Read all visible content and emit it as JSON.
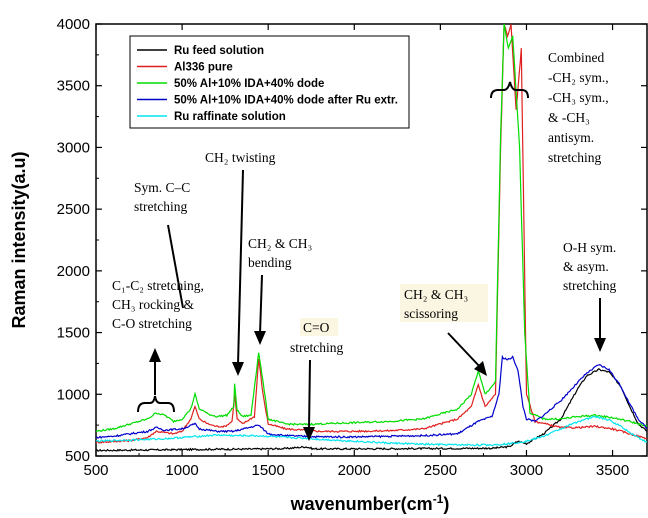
{
  "chart_data": {
    "type": "line",
    "title": "",
    "xlabel": "wavenumber(cm",
    "xlabel_sup": "-1",
    "xlabel_end": ")",
    "ylabel": "Raman intensity(a.u)",
    "xlim": [
      500,
      3700
    ],
    "ylim": [
      500,
      4000
    ],
    "xticks": [
      500,
      1000,
      1500,
      2000,
      2500,
      3000,
      3500
    ],
    "yticks": [
      500,
      1000,
      1500,
      2000,
      2500,
      3000,
      3500,
      4000
    ],
    "grid": false,
    "legend_position": "top-left",
    "series": [
      {
        "name": "Ru feed solution",
        "color": "#000000",
        "points": [
          [
            500,
            545
          ],
          [
            700,
            548
          ],
          [
            900,
            550
          ],
          [
            1000,
            552
          ],
          [
            1200,
            555
          ],
          [
            1400,
            556
          ],
          [
            1600,
            560
          ],
          [
            1720,
            575
          ],
          [
            1760,
            558
          ],
          [
            2000,
            558
          ],
          [
            2400,
            560
          ],
          [
            2800,
            563
          ],
          [
            2900,
            575
          ],
          [
            2950,
            620
          ],
          [
            3000,
            600
          ],
          [
            3100,
            680
          ],
          [
            3200,
            800
          ],
          [
            3300,
            1050
          ],
          [
            3350,
            1150
          ],
          [
            3420,
            1200
          ],
          [
            3480,
            1180
          ],
          [
            3550,
            1060
          ],
          [
            3600,
            900
          ],
          [
            3650,
            760
          ],
          [
            3700,
            700
          ]
        ]
      },
      {
        "name": "Al336 pure",
        "color": "#e02020",
        "points": [
          [
            500,
            610
          ],
          [
            700,
            625
          ],
          [
            800,
            650
          ],
          [
            850,
            700
          ],
          [
            900,
            690
          ],
          [
            950,
            680
          ],
          [
            1000,
            700
          ],
          [
            1050,
            800
          ],
          [
            1075,
            900
          ],
          [
            1100,
            800
          ],
          [
            1150,
            760
          ],
          [
            1200,
            740
          ],
          [
            1250,
            740
          ],
          [
            1290,
            780
          ],
          [
            1305,
            1000
          ],
          [
            1320,
            800
          ],
          [
            1350,
            760
          ],
          [
            1420,
            820
          ],
          [
            1445,
            1290
          ],
          [
            1470,
            1000
          ],
          [
            1500,
            760
          ],
          [
            1600,
            720
          ],
          [
            1700,
            710
          ],
          [
            1800,
            700
          ],
          [
            2000,
            700
          ],
          [
            2200,
            705
          ],
          [
            2400,
            720
          ],
          [
            2600,
            800
          ],
          [
            2680,
            900
          ],
          [
            2720,
            1080
          ],
          [
            2760,
            900
          ],
          [
            2820,
            1000
          ],
          [
            2850,
            3000
          ],
          [
            2870,
            4000
          ],
          [
            2890,
            3900
          ],
          [
            2910,
            4000
          ],
          [
            2940,
            3300
          ],
          [
            2970,
            3800
          ],
          [
            3000,
            1000
          ],
          [
            3050,
            780
          ],
          [
            3200,
            730
          ],
          [
            3300,
            730
          ],
          [
            3400,
            740
          ],
          [
            3500,
            720
          ],
          [
            3600,
            680
          ],
          [
            3700,
            640
          ]
        ]
      },
      {
        "name": "50% Al+10% IDA+40% dode",
        "color": "#00dd00",
        "points": [
          [
            500,
            700
          ],
          [
            600,
            720
          ],
          [
            700,
            760
          ],
          [
            800,
            800
          ],
          [
            850,
            850
          ],
          [
            900,
            830
          ],
          [
            950,
            780
          ],
          [
            1000,
            800
          ],
          [
            1050,
            880
          ],
          [
            1075,
            1000
          ],
          [
            1100,
            880
          ],
          [
            1120,
            870
          ],
          [
            1150,
            840
          ],
          [
            1200,
            820
          ],
          [
            1260,
            830
          ],
          [
            1300,
            900
          ],
          [
            1305,
            1080
          ],
          [
            1320,
            870
          ],
          [
            1350,
            820
          ],
          [
            1400,
            830
          ],
          [
            1445,
            1340
          ],
          [
            1470,
            1100
          ],
          [
            1500,
            800
          ],
          [
            1600,
            760
          ],
          [
            1700,
            755
          ],
          [
            1800,
            760
          ],
          [
            2000,
            770
          ],
          [
            2200,
            780
          ],
          [
            2400,
            800
          ],
          [
            2600,
            880
          ],
          [
            2680,
            1000
          ],
          [
            2720,
            1190
          ],
          [
            2760,
            1000
          ],
          [
            2820,
            1100
          ],
          [
            2850,
            3100
          ],
          [
            2870,
            4000
          ],
          [
            2895,
            3800
          ],
          [
            2920,
            3900
          ],
          [
            2960,
            3000
          ],
          [
            2990,
            1500
          ],
          [
            3020,
            850
          ],
          [
            3100,
            800
          ],
          [
            3200,
            800
          ],
          [
            3300,
            820
          ],
          [
            3400,
            830
          ],
          [
            3500,
            810
          ],
          [
            3600,
            780
          ],
          [
            3700,
            740
          ]
        ]
      },
      {
        "name": "50% Al+10% IDA+40% dode after Ru extr.",
        "color": "#0000cc",
        "points": [
          [
            500,
            650
          ],
          [
            600,
            660
          ],
          [
            700,
            680
          ],
          [
            800,
            700
          ],
          [
            850,
            730
          ],
          [
            900,
            710
          ],
          [
            1000,
            720
          ],
          [
            1075,
            760
          ],
          [
            1100,
            720
          ],
          [
            1200,
            700
          ],
          [
            1300,
            700
          ],
          [
            1445,
            750
          ],
          [
            1500,
            680
          ],
          [
            1600,
            665
          ],
          [
            1700,
            660
          ],
          [
            1800,
            655
          ],
          [
            2000,
            655
          ],
          [
            2200,
            660
          ],
          [
            2400,
            665
          ],
          [
            2600,
            680
          ],
          [
            2720,
            780
          ],
          [
            2800,
            820
          ],
          [
            2840,
            1000
          ],
          [
            2860,
            1300
          ],
          [
            2890,
            1280
          ],
          [
            2920,
            1300
          ],
          [
            2950,
            1200
          ],
          [
            2980,
            900
          ],
          [
            3000,
            800
          ],
          [
            3050,
            780
          ],
          [
            3100,
            830
          ],
          [
            3200,
            950
          ],
          [
            3300,
            1100
          ],
          [
            3350,
            1170
          ],
          [
            3420,
            1240
          ],
          [
            3480,
            1200
          ],
          [
            3550,
            1060
          ],
          [
            3600,
            920
          ],
          [
            3650,
            800
          ],
          [
            3700,
            720
          ]
        ]
      },
      {
        "name": "Ru raffinate solution",
        "color": "#00e5ee",
        "points": [
          [
            500,
            620
          ],
          [
            700,
            630
          ],
          [
            900,
            640
          ],
          [
            1000,
            650
          ],
          [
            1100,
            660
          ],
          [
            1200,
            670
          ],
          [
            1300,
            665
          ],
          [
            1400,
            665
          ],
          [
            1500,
            660
          ],
          [
            1600,
            650
          ],
          [
            1700,
            645
          ],
          [
            1800,
            635
          ],
          [
            2000,
            620
          ],
          [
            2200,
            605
          ],
          [
            2400,
            595
          ],
          [
            2600,
            590
          ],
          [
            2800,
            590
          ],
          [
            2900,
            600
          ],
          [
            3000,
            620
          ],
          [
            3100,
            660
          ],
          [
            3200,
            720
          ],
          [
            3300,
            780
          ],
          [
            3400,
            820
          ],
          [
            3480,
            790
          ],
          [
            3550,
            740
          ],
          [
            3600,
            690
          ],
          [
            3700,
            610
          ]
        ]
      }
    ],
    "annotations": {
      "combined": [
        "Combined",
        "-CH₂ sym.,",
        "-CH₃ sym.,",
        "& -CH₃",
        "antisym.",
        "stretching"
      ],
      "sym_cc": [
        "Sym. C–C",
        "stretching"
      ],
      "ch2_twisting": "CH₂ twisting",
      "ch2_ch3_bending": [
        "CH₂ & CH₃",
        "bending"
      ],
      "c1c2": [
        "C₁-C₂ stretching,",
        "CH₃ rocking &",
        "C-O stretching"
      ],
      "co": [
        "C=O",
        "stretching"
      ],
      "scissoring": [
        "CH₂ & CH₃",
        "scissoring"
      ],
      "oh": [
        "O-H sym.",
        "& asym.",
        "stretching"
      ]
    }
  }
}
